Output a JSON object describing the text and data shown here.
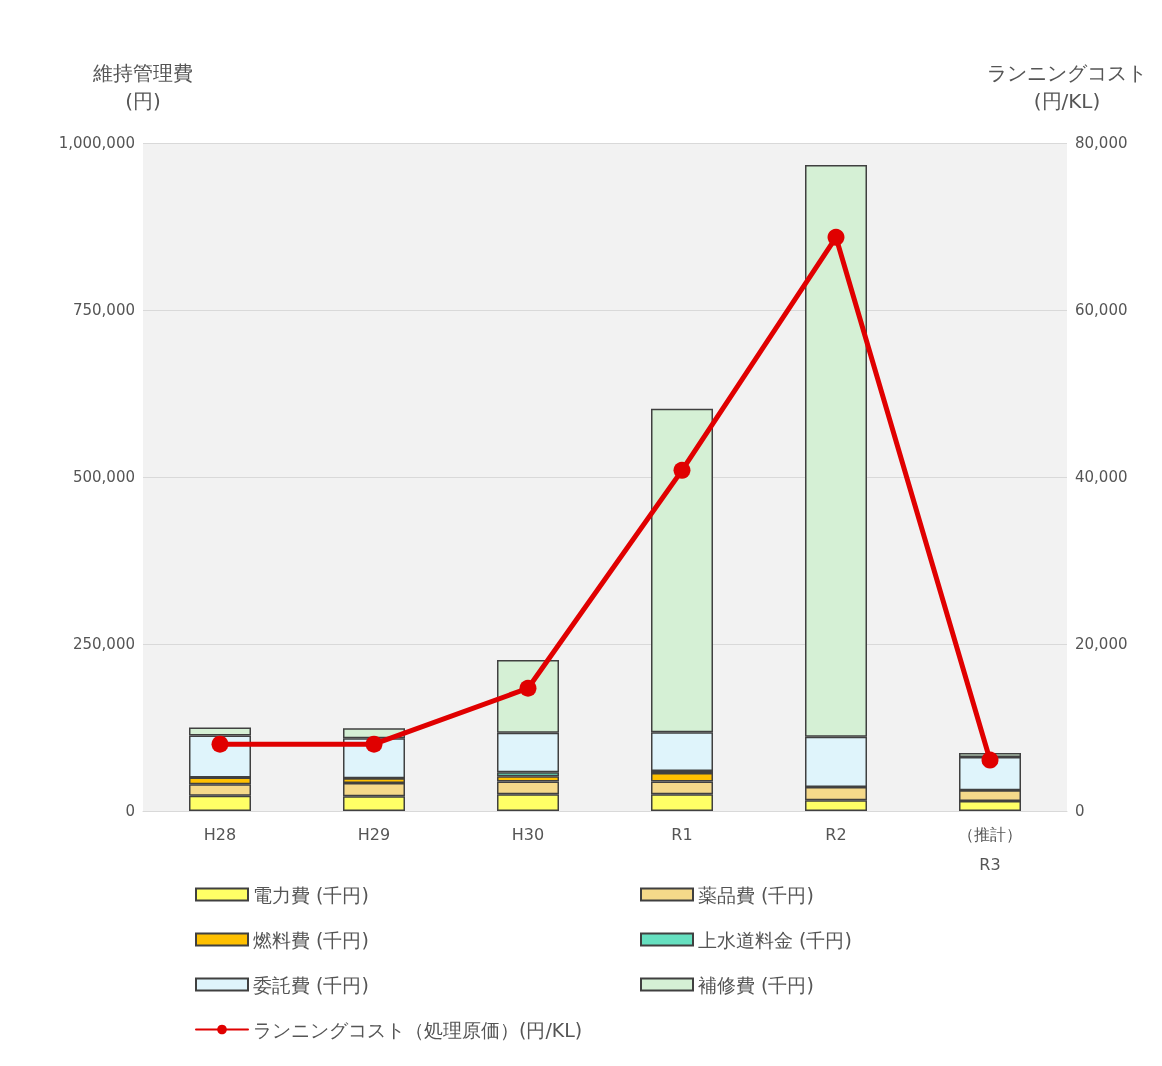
{
  "chart_data": {
    "type": "bar",
    "stacked": true,
    "ylabel": "維持管理費\n(円)",
    "y2label": "ランニングコスト\n(円/KL)",
    "categories": [
      "H28",
      "H29",
      "H30",
      "R1",
      "R2",
      "（推計）\nR3"
    ],
    "series": [
      {
        "name": "電力費 (千円)",
        "color": "#ffff66",
        "values": [
          23000,
          22000,
          25000,
          25000,
          16000,
          15000
        ]
      },
      {
        "name": "薬品費 (千円)",
        "color": "#f5d98a",
        "values": [
          17000,
          20000,
          19000,
          19000,
          20000,
          16000
        ]
      },
      {
        "name": "燃料費 (千円)",
        "color": "#ffc000",
        "values": [
          10000,
          7000,
          8000,
          13000,
          null,
          0
        ]
      },
      {
        "name": "上水道料金 (千円)",
        "color": "#66e0c0",
        "values": [
          0,
          0,
          6000,
          3000,
          0,
          0
        ]
      },
      {
        "name": "委託費 (千円)",
        "color": "#dff4fb",
        "values": [
          63000,
          60000,
          59000,
          58000,
          75000,
          50000
        ]
      },
      {
        "name": "補修費 (千円)",
        "color": "#d5f0d5",
        "values": [
          12000,
          15000,
          109000,
          484000,
          856000,
          6000
        ]
      },
      {
        "name": "ランニングコスト（処理原価）(円/KL)",
        "type": "line",
        "axis": "y2",
        "color": "#e00000",
        "marker": "circle",
        "values": [
          8000,
          8000,
          14700,
          40800,
          68700,
          6100
        ]
      }
    ],
    "ylim": [
      0,
      1000000
    ],
    "yticks": [
      0,
      {
        "value": 250000,
        "label": "250,000"
      },
      {
        "value": 500000,
        "label": "500,000"
      },
      {
        "value": 750000,
        "label": "750,000"
      },
      {
        "value": 1000000,
        "label": "1,000,000"
      }
    ],
    "y2lim": [
      0,
      80000
    ],
    "y2ticks": [
      0,
      {
        "value": 20000,
        "label": "20,000"
      },
      {
        "value": 40000,
        "label": "40,000"
      },
      {
        "value": 60000,
        "label": "60,000"
      },
      {
        "value": 80000,
        "label": "80,000"
      }
    ],
    "grid": "y",
    "legend": "bottom"
  }
}
